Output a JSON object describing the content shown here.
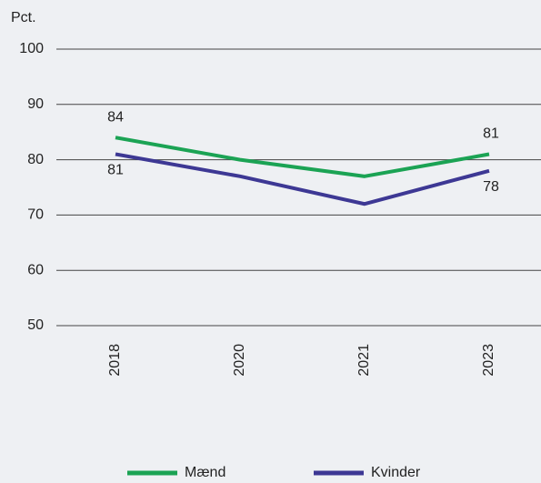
{
  "chart_data": {
    "type": "line",
    "y_label": "Pct.",
    "categories": [
      "2018",
      "2020",
      "2021",
      "2023"
    ],
    "series": [
      {
        "name": "Mænd",
        "color": "#1ba354",
        "values": [
          84,
          80,
          77,
          81
        ],
        "value_labels": [
          "84",
          null,
          null,
          "81"
        ]
      },
      {
        "name": "Kvinder",
        "color": "#3d3894",
        "values": [
          81,
          77,
          72,
          78
        ],
        "value_labels": [
          "81",
          null,
          null,
          "78"
        ]
      }
    ],
    "ylim": [
      50,
      100
    ],
    "yticks": [
      50,
      60,
      70,
      80,
      90,
      100
    ],
    "grid": true,
    "legend": "bottom"
  }
}
